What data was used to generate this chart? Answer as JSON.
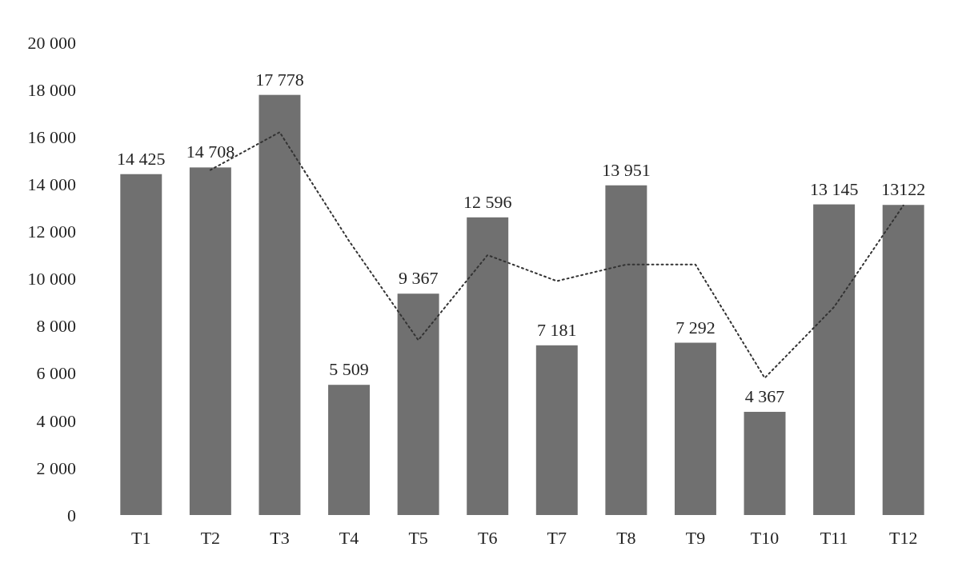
{
  "chart_data": {
    "type": "bar",
    "categories": [
      "T1",
      "T2",
      "T3",
      "T4",
      "T5",
      "T6",
      "T7",
      "T8",
      "T9",
      "T10",
      "T11",
      "T12"
    ],
    "series": [
      {
        "color": "#707070",
        "values": [
          14425,
          14708,
          17778,
          5509,
          9367,
          12596,
          7181,
          13951,
          7292,
          4367,
          13145,
          13122
        ],
        "value_labels": [
          "14 425",
          "14 708",
          "17 778",
          "5 509",
          "9 367",
          "12 596",
          "7 181",
          "13 951",
          "7 292",
          "4 367",
          "13 145",
          "13122"
        ]
      },
      {
        "type": "line",
        "color": "#333333",
        "line_style": "dotted",
        "x": [
          "T2",
          "T3",
          "T4",
          "T5",
          "T6",
          "T7",
          "T8",
          "T9",
          "T10",
          "T11",
          "T12"
        ],
        "values": [
          14600,
          16200,
          11600,
          7400,
          11000,
          9900,
          10600,
          10600,
          5800,
          8800,
          13100
        ]
      }
    ],
    "ylim": [
      0,
      20000
    ],
    "yticks": [
      {
        "value": 0,
        "label": "0"
      },
      {
        "value": 2000,
        "label": "2 000"
      },
      {
        "value": 4000,
        "label": "4 000"
      },
      {
        "value": 6000,
        "label": "6 000"
      },
      {
        "value": 8000,
        "label": "8 000"
      },
      {
        "value": 10000,
        "label": "10 000"
      },
      {
        "value": 12000,
        "label": "12 000"
      },
      {
        "value": 14000,
        "label": "14 000"
      },
      {
        "value": 16000,
        "label": "16 000"
      },
      {
        "value": 18000,
        "label": "18 000"
      },
      {
        "value": 20000,
        "label": "20 000"
      }
    ],
    "grid": false
  }
}
